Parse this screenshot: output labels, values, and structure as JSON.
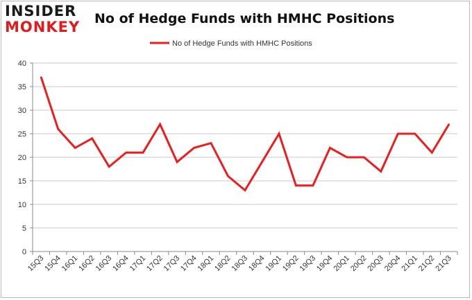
{
  "logo": {
    "line1": "INSIDER",
    "line2": "MONKEY"
  },
  "colors": {
    "series": "#ee1c1c",
    "grid": "#c8c8c8",
    "axis": "#8a8a8a"
  },
  "chart_data": {
    "type": "line",
    "title": "No of Hedge Funds with HMHC Positions",
    "legend_position": "top-center",
    "grid": true,
    "ylim": [
      0,
      40
    ],
    "yticks": [
      0,
      5,
      10,
      15,
      20,
      25,
      30,
      35,
      40
    ],
    "categories": [
      "15Q3",
      "15Q4",
      "16Q1",
      "16Q2",
      "16Q3",
      "16Q4",
      "17Q1",
      "17Q2",
      "17Q3",
      "17Q4",
      "18Q1",
      "18Q2",
      "18Q3",
      "18Q4",
      "19Q1",
      "19Q2",
      "19Q3",
      "19Q4",
      "20Q1",
      "20Q2",
      "20Q3",
      "20Q4",
      "21Q1",
      "21Q2",
      "21Q3"
    ],
    "series": [
      {
        "name": "No of Hedge Funds with HMHC Positions",
        "values": [
          37,
          26,
          22,
          24,
          18,
          21,
          21,
          27,
          19,
          22,
          23,
          16,
          13,
          19,
          25,
          14,
          14,
          22,
          20,
          20,
          17,
          25,
          25,
          21,
          27
        ]
      }
    ]
  }
}
